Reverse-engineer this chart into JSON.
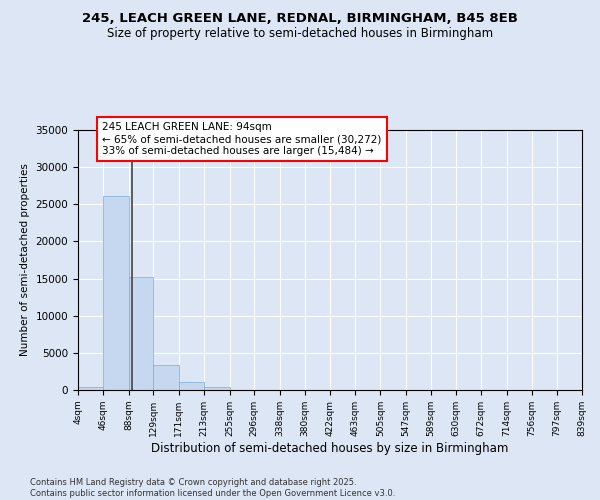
{
  "title1": "245, LEACH GREEN LANE, REDNAL, BIRMINGHAM, B45 8EB",
  "title2": "Size of property relative to semi-detached houses in Birmingham",
  "xlabel": "Distribution of semi-detached houses by size in Birmingham",
  "ylabel": "Number of semi-detached properties",
  "bin_edges": [
    4,
    46,
    88,
    129,
    171,
    213,
    255,
    296,
    338,
    380,
    422,
    463,
    505,
    547,
    589,
    630,
    672,
    714,
    756,
    797,
    839
  ],
  "bin_labels": [
    "4sqm",
    "46sqm",
    "88sqm",
    "129sqm",
    "171sqm",
    "213sqm",
    "255sqm",
    "296sqm",
    "338sqm",
    "380sqm",
    "422sqm",
    "463sqm",
    "505sqm",
    "547sqm",
    "589sqm",
    "630sqm",
    "672sqm",
    "714sqm",
    "756sqm",
    "797sqm",
    "839sqm"
  ],
  "bar_heights": [
    400,
    26100,
    15200,
    3300,
    1100,
    400,
    50,
    0,
    0,
    0,
    0,
    0,
    0,
    0,
    0,
    0,
    0,
    0,
    0,
    0
  ],
  "bar_color": "#c5d8f0",
  "bar_edge_color": "#7aadd4",
  "property_size": 94,
  "property_label": "245 LEACH GREEN LANE: 94sqm",
  "pct_smaller": 65,
  "n_smaller": 30272,
  "pct_larger": 33,
  "n_larger": 15484,
  "vline_color": "#444444",
  "annotation_box_edge_color": "red",
  "ylim": [
    0,
    35000
  ],
  "yticks": [
    0,
    5000,
    10000,
    15000,
    20000,
    25000,
    30000,
    35000
  ],
  "background_color": "#dce6f5",
  "grid_color": "#ffffff",
  "footnote1": "Contains HM Land Registry data © Crown copyright and database right 2025.",
  "footnote2": "Contains public sector information licensed under the Open Government Licence v3.0."
}
